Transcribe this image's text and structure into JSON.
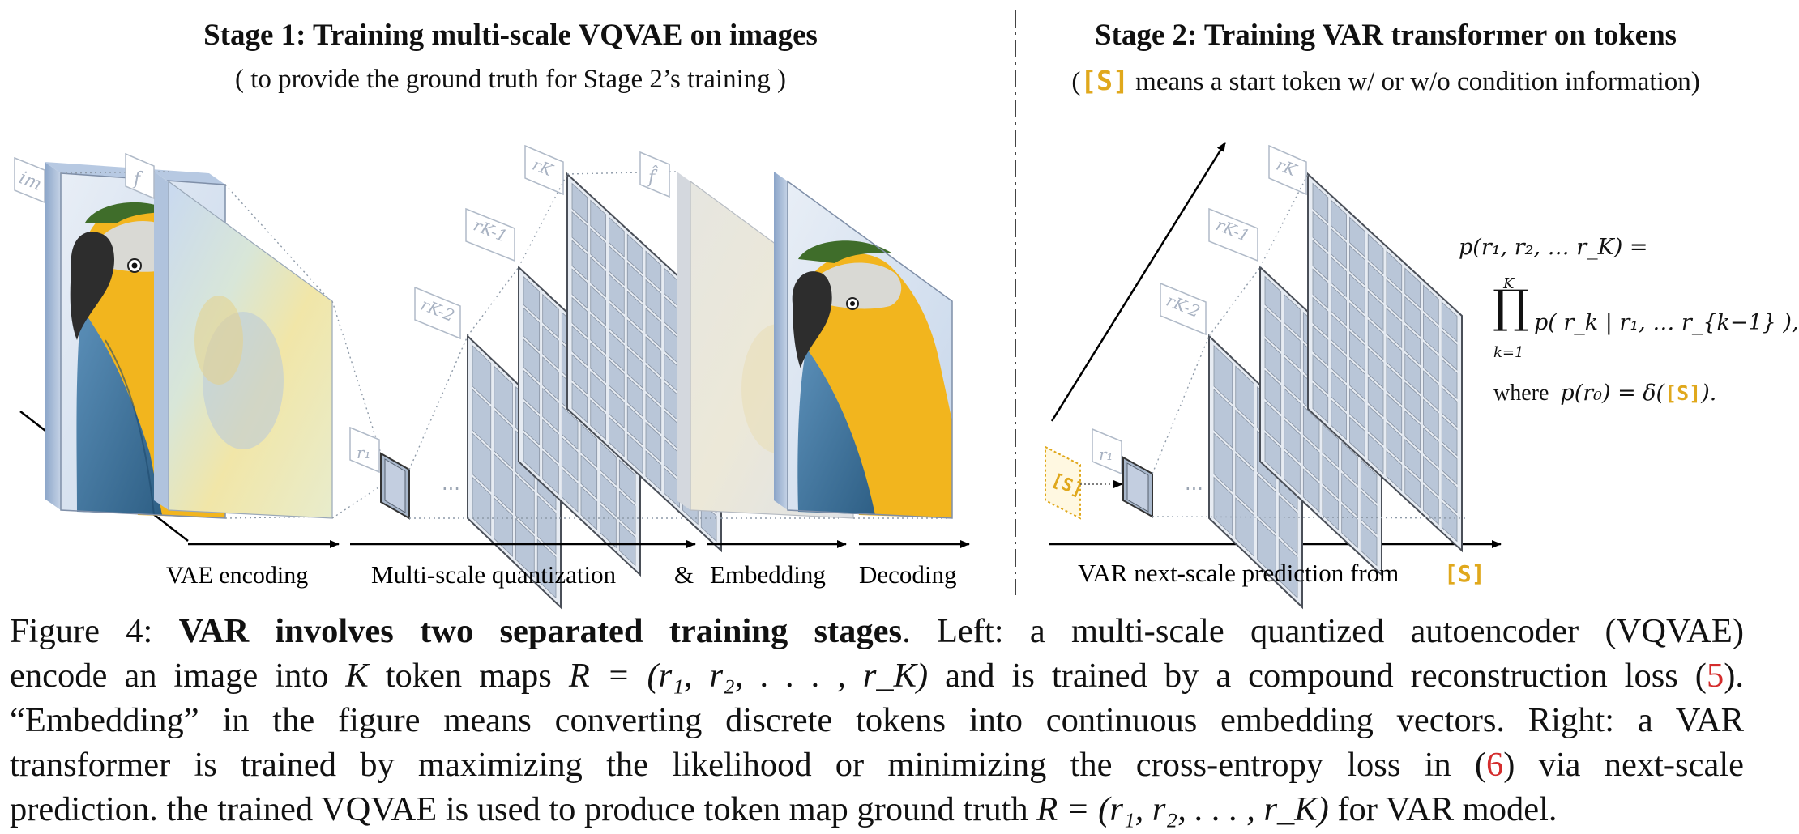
{
  "stage1": {
    "title": "Stage 1:  Training multi-scale VQVAE on images",
    "subtitle": "( to provide the ground truth for Stage 2’s training )"
  },
  "stage2": {
    "title": "Stage 2:  Training VAR transformer on tokens",
    "subtitle_open": "(",
    "subtitle_token": "[S]",
    "subtitle_rest": " means a start token w/ or w/o condition information)"
  },
  "labels": {
    "im": "im",
    "f": "f",
    "f_hat": "f̂",
    "r1": "r₁",
    "rK2": "rK-2",
    "rK1": "rK-1",
    "rK": "rK",
    "dots": "···",
    "start_token": "[S]"
  },
  "axis": {
    "vae_encoding": "VAE encoding",
    "multi_scale": "Multi-scale quantization",
    "amp": "&",
    "embedding": "Embedding",
    "decoding": "Decoding",
    "var_prediction": "VAR next-scale prediction from",
    "var_token": "[S]"
  },
  "formula": {
    "line1": "p(r₁, r₂, … r_K) =",
    "prod_top": "K",
    "prod_symbol": "∏",
    "prod_bottom": "k=1",
    "line2": "p( r_k | r₁, … r_{k−1} ),",
    "where": "where",
    "line3_a": "p(r₀) = δ(",
    "line3_token": "[S]",
    "line3_b": ")."
  },
  "caption": {
    "lead": "Figure 4: ",
    "bold": "VAR involves two separated training stages",
    "line1_rest": ". Left: a multi-scale quantized autoencoder (VQVAE)",
    "line2_a": "encode an image into ",
    "line2_K": "K",
    "line2_b": " token maps ",
    "line2_R": "R = (r₁, r₂, . . . , r_K)",
    "line2_c": " and is trained by a compound reconstruction loss (",
    "line2_ref": "5",
    "line2_d": ").",
    "line3": "“Embedding” in the figure means converting discrete tokens into continuous embedding vectors. Right: a VAR",
    "line4_a": "transformer is trained by maximizing the likelihood or minimizing the cross-entropy loss in (",
    "line4_ref": "6",
    "line4_b": ") via next-scale",
    "line5_a": "prediction. the trained VQVAE is used to produce token map ground truth ",
    "line5_R": "R = (r₁, r₂, . . . , r_K)",
    "line5_b": " for VAR model."
  },
  "colors": {
    "gold": "#e0a81c",
    "ref_red": "#d42c2c",
    "grid_fill": "#b9c6d8",
    "grid_stroke": "#4a4f58",
    "axis_black": "#000000"
  }
}
